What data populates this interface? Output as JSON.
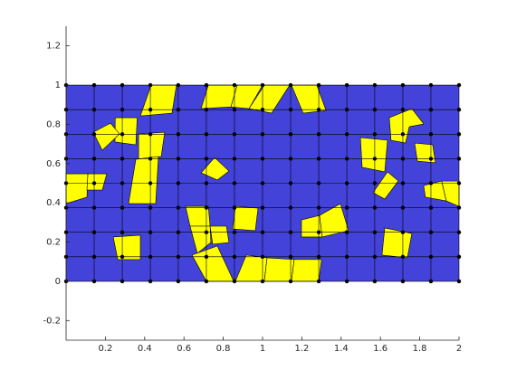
{
  "chart_data": {
    "type": "mesh",
    "xlim": [
      0,
      2
    ],
    "ylim": [
      -0.3,
      1.3
    ],
    "xticks": [
      0.2,
      0.4,
      0.6,
      0.8,
      1,
      1.2,
      1.4,
      1.6,
      1.8,
      2
    ],
    "yticks": [
      -0.2,
      0,
      0.2,
      0.4,
      0.6,
      0.8,
      1,
      1.2
    ],
    "color": "#4343d9",
    "highlight_color": "#ffff00",
    "grid_x": [
      0,
      0.143,
      0.286,
      0.429,
      0.571,
      0.714,
      0.857,
      1,
      1.143,
      1.286,
      1.429,
      1.571,
      1.714,
      1.857,
      2
    ],
    "grid_y": [
      0,
      0.125,
      0.25,
      0.375,
      0.5,
      0.625,
      0.75,
      0.875,
      1
    ],
    "polygons": [
      {
        "x": [
          0.433,
          0.562,
          0.539,
          0.378
        ],
        "y": [
          1,
          1,
          0.857,
          0.843
        ]
      },
      {
        "x": [
          0.724,
          0.871,
          0.839,
          0.687
        ],
        "y": [
          1,
          1,
          0.889,
          0.88
        ]
      },
      {
        "x": [
          0.871,
          1,
          0.931,
          0.839
        ],
        "y": [
          1,
          1,
          0.88,
          0.889
        ]
      },
      {
        "x": [
          1.009,
          1.138,
          1.046,
          0.931
        ],
        "y": [
          1,
          1,
          0.857,
          0.88
        ]
      },
      {
        "x": [
          1.147,
          1.276,
          1.323,
          1.207
        ],
        "y": [
          1,
          1,
          0.871,
          0.857
        ]
      },
      {
        "x": [
          0.25,
          0.362,
          0.355,
          0.249
        ],
        "y": [
          0.834,
          0.834,
          0.696,
          0.71
        ]
      },
      {
        "x": [
          0.138,
          0.226,
          0.272,
          0.184
        ],
        "y": [
          0.76,
          0.806,
          0.751,
          0.668
        ]
      },
      {
        "x": [
          0.369,
          0.502,
          0.484,
          0.369
        ],
        "y": [
          0.751,
          0.76,
          0.636,
          0.622
        ]
      },
      {
        "x": [
          0.355,
          0.47,
          0.456,
          0.318
        ],
        "y": [
          0.622,
          0.636,
          0.396,
          0.396
        ]
      },
      {
        "x": [
          0,
          0.111,
          0.106,
          0
        ],
        "y": [
          0.548,
          0.548,
          0.429,
          0.396
        ]
      },
      {
        "x": [
          0.111,
          0.207,
          0.184,
          0.106
        ],
        "y": [
          0.548,
          0.548,
          0.465,
          0.465
        ]
      },
      {
        "x": [
          0.756,
          0.829,
          0.77,
          0.687
        ],
        "y": [
          0.631,
          0.562,
          0.516,
          0.553
        ]
      },
      {
        "x": [
          0.608,
          0.724,
          0.733,
          0.631
        ],
        "y": [
          0.382,
          0.382,
          0.281,
          0.281
        ]
      },
      {
        "x": [
          0.862,
          0.977,
          0.963,
          0.848
        ],
        "y": [
          0.382,
          0.373,
          0.258,
          0.267
        ]
      },
      {
        "x": [
          0.631,
          0.733,
          0.737,
          0.668
        ],
        "y": [
          0.281,
          0.281,
          0.198,
          0.143
        ]
      },
      {
        "x": [
          0.733,
          0.816,
          0.829,
          0.746
        ],
        "y": [
          0.281,
          0.281,
          0.198,
          0.189
        ]
      },
      {
        "x": [
          0.641,
          0.77,
          0.853,
          0.714
        ],
        "y": [
          0.134,
          0.18,
          0,
          0
        ]
      },
      {
        "x": [
          0.862,
          0.917,
          1.023,
          1.009
        ],
        "y": [
          0,
          0.134,
          0.12,
          0
        ]
      },
      {
        "x": [
          1.023,
          1.161,
          1.147,
          1.009
        ],
        "y": [
          0.12,
          0.111,
          0,
          0
        ]
      },
      {
        "x": [
          1.161,
          1.3,
          1.286,
          1.147
        ],
        "y": [
          0.111,
          0.111,
          0,
          0
        ]
      },
      {
        "x": [
          0.24,
          0.378,
          0.378,
          0.263
        ],
        "y": [
          0.226,
          0.235,
          0.111,
          0.111
        ]
      },
      {
        "x": [
          1.198,
          1.29,
          1.304,
          1.198
        ],
        "y": [
          0.313,
          0.336,
          0.226,
          0.226
        ]
      },
      {
        "x": [
          1.29,
          1.396,
          1.438,
          1.304
        ],
        "y": [
          0.336,
          0.396,
          0.258,
          0.226
        ]
      },
      {
        "x": [
          1.498,
          1.636,
          1.622,
          1.507
        ],
        "y": [
          0.733,
          0.719,
          0.558,
          0.581
        ]
      },
      {
        "x": [
          1.636,
          1.691,
          1.622,
          1.562
        ],
        "y": [
          0.558,
          0.512,
          0.419,
          0.452
        ]
      },
      {
        "x": [
          1.645,
          1.76,
          1.82,
          1.747,
          1.728,
          1.654
        ],
        "y": [
          0.834,
          0.88,
          0.802,
          0.788,
          0.705,
          0.719
        ]
      },
      {
        "x": [
          1.774,
          1.866,
          1.88,
          1.788
        ],
        "y": [
          0.705,
          0.696,
          0.604,
          0.613
        ]
      },
      {
        "x": [
          1.82,
          1.912,
          1.935,
          1.829
        ],
        "y": [
          0.488,
          0.511,
          0.41,
          0.429
        ]
      },
      {
        "x": [
          1.912,
          2,
          2,
          1.935
        ],
        "y": [
          0.511,
          0.511,
          0.382,
          0.41
        ]
      },
      {
        "x": [
          1.622,
          1.76,
          1.737,
          1.608
        ],
        "y": [
          0.272,
          0.244,
          0.12,
          0.134
        ]
      }
    ]
  }
}
